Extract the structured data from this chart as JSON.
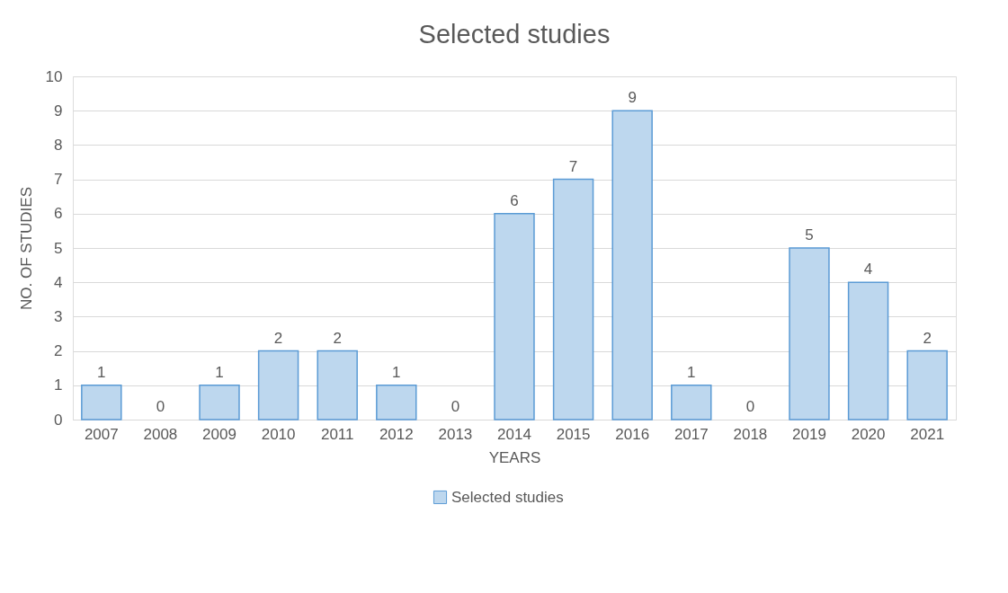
{
  "chart_data": {
    "type": "bar",
    "title": "Selected studies",
    "xlabel": "YEARS",
    "ylabel": "NO. OF STUDIES",
    "categories": [
      "2007",
      "2008",
      "2009",
      "2010",
      "2011",
      "2012",
      "2013",
      "2014",
      "2015",
      "2016",
      "2017",
      "2018",
      "2019",
      "2020",
      "2021"
    ],
    "series": [
      {
        "name": "Selected studies",
        "color": "#bdd7ee",
        "values": [
          1,
          0,
          1,
          2,
          2,
          1,
          0,
          6,
          7,
          9,
          1,
          0,
          5,
          4,
          2
        ]
      }
    ],
    "ylim": [
      0,
      10
    ],
    "yticks": [
      0,
      1,
      2,
      3,
      4,
      5,
      6,
      7,
      8,
      9,
      10
    ],
    "grid": "y",
    "legend": "bottom",
    "data_labels": true
  }
}
